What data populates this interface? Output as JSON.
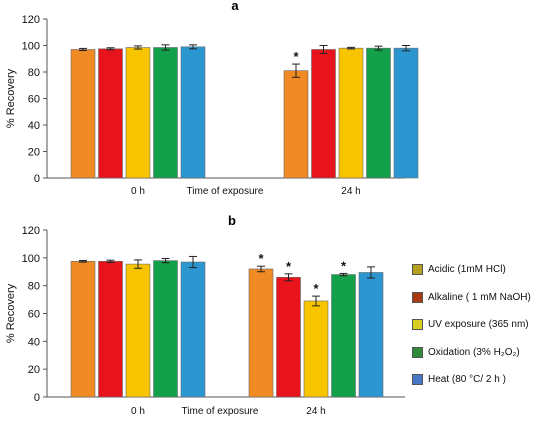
{
  "chart_data": [
    {
      "type": "bar",
      "panel_label": "a",
      "title": "",
      "categories": [
        "0 h",
        "24 h"
      ],
      "xlabel": "Time of exposure",
      "ylabel": "% Recovery",
      "ylim": [
        0,
        120
      ],
      "yticks": [
        "0",
        "20",
        "40",
        "60",
        "80",
        "100",
        "120"
      ],
      "grid": false,
      "series": [
        {
          "name": "Acidic (1mM HCl)",
          "values": [
            97,
            81
          ],
          "errors": [
            0.8,
            5
          ],
          "color": "#f08a24",
          "significant": [
            false,
            true
          ]
        },
        {
          "name": "Alkaline ( 1 mM NaOH)",
          "values": [
            97.5,
            97
          ],
          "errors": [
            0.8,
            3
          ],
          "color": "#e8141c",
          "significant": [
            false,
            false
          ]
        },
        {
          "name": "UV exposure (365 nm)",
          "values": [
            98.5,
            98
          ],
          "errors": [
            1.2,
            0.6
          ],
          "color": "#f8c400",
          "significant": [
            false,
            false
          ]
        },
        {
          "name": "Oxidation (3% H₂O₂)",
          "values": [
            98.5,
            98
          ],
          "errors": [
            2,
            1.5
          ],
          "color": "#12a04a",
          "significant": [
            false,
            false
          ]
        },
        {
          "name": "Heat (80 °C/ 2 h )",
          "values": [
            99,
            98
          ],
          "errors": [
            1.5,
            2
          ],
          "color": "#2b96cf",
          "significant": [
            false,
            false
          ]
        }
      ]
    },
    {
      "type": "bar",
      "panel_label": "b",
      "title": "",
      "categories": [
        "0 h",
        "24 h"
      ],
      "xlabel": "Time of exposure",
      "ylabel": "% Recovery",
      "ylim": [
        0,
        120
      ],
      "yticks": [
        "0",
        "20",
        "40",
        "60",
        "80",
        "100",
        "120"
      ],
      "grid": false,
      "series": [
        {
          "name": "Acidic (1mM HCl)",
          "values": [
            97.5,
            92
          ],
          "errors": [
            0.6,
            2
          ],
          "color": "#f08a24",
          "significant": [
            false,
            true
          ]
        },
        {
          "name": "Alkaline ( 1 mM NaOH)",
          "values": [
            97.5,
            86
          ],
          "errors": [
            0.8,
            2.5
          ],
          "color": "#e8141c",
          "significant": [
            false,
            true
          ]
        },
        {
          "name": "UV exposure (365 nm)",
          "values": [
            95.5,
            69
          ],
          "errors": [
            3,
            3.5
          ],
          "color": "#f8c400",
          "significant": [
            false,
            true
          ]
        },
        {
          "name": "Oxidation (3% H₂O₂)",
          "values": [
            98,
            88
          ],
          "errors": [
            1.5,
            0.8
          ],
          "color": "#12a04a",
          "significant": [
            false,
            true
          ]
        },
        {
          "name": "Heat (80 °C/ 2 h )",
          "values": [
            97,
            89.5
          ],
          "errors": [
            4,
            4
          ],
          "color": "#2b96cf",
          "significant": [
            false,
            false
          ]
        }
      ]
    }
  ],
  "legend": {
    "placement": "right of panel b",
    "items": [
      {
        "label": "Acidic (1mM HCl)",
        "color": "#b5a020"
      },
      {
        "label": "Alkaline ( 1 mM NaOH)",
        "color": "#a83a12"
      },
      {
        "label": "UV exposure (365 nm)",
        "color": "#d8d020"
      },
      {
        "label": "Oxidation (3% H₂O₂)",
        "color": "#2f8a3c"
      },
      {
        "label": "Heat (80 °C/ 2 h )",
        "color": "#4a78c8"
      }
    ]
  },
  "significance_marker": "*"
}
